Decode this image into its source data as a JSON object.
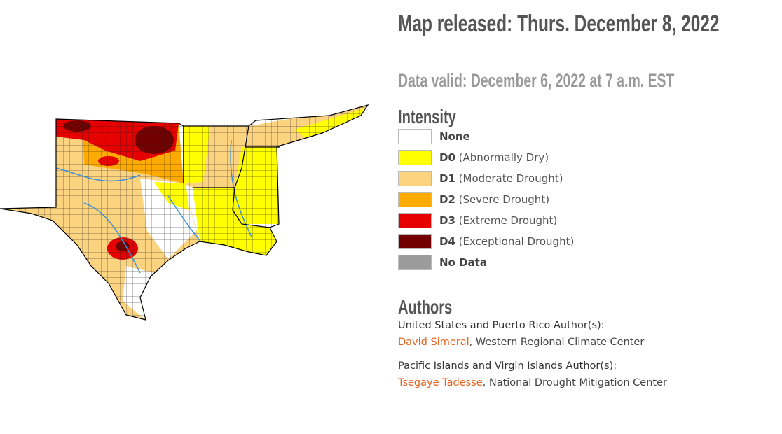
{
  "header": {
    "title": "Map released: Thurs. December 8, 2022",
    "subtitle": "Data valid: December 6, 2022 at 7 a.m. EST"
  },
  "legend": {
    "title": "Intensity",
    "items": [
      {
        "code": "None",
        "color": "#ffffff"
      },
      {
        "code": "D0",
        "description": "(Abnormally Dry)",
        "color": "#ffff00"
      },
      {
        "code": "D1",
        "description": "(Moderate Drought)",
        "color": "#fcd37f"
      },
      {
        "code": "D2",
        "description": "(Severe Drought)",
        "color": "#ffaa00"
      },
      {
        "code": "D3",
        "description": "(Extreme Drought)",
        "color": "#e60000"
      },
      {
        "code": "D4",
        "description": "(Exceptional Drought)",
        "color": "#730000"
      },
      {
        "code": "No Data",
        "color": "#9b9b9b"
      }
    ]
  },
  "authors": {
    "title": "Authors",
    "groups": [
      {
        "heading": "United States and Puerto Rico Author(s):",
        "name": "David Simeral",
        "affiliation": ", Western Regional Climate Center"
      },
      {
        "heading": "Pacific Islands and Virgin Islands Author(s):",
        "name": "Tsegaye Tadesse",
        "affiliation": ", National Drought Mitigation Center"
      }
    ]
  }
}
